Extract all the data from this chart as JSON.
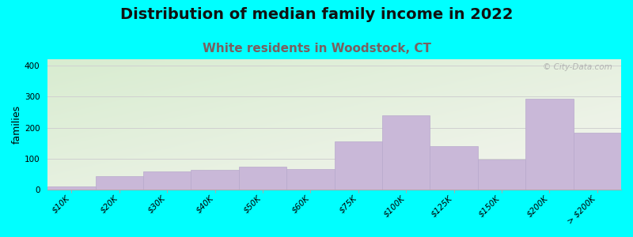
{
  "title": "Distribution of median family income in 2022",
  "subtitle": "White residents in Woodstock, CT",
  "ylabel": "families",
  "categories": [
    "$10K",
    "$20K",
    "$30K",
    "$40K",
    "$50K",
    "$60K",
    "$75K",
    "$100K",
    "$125K",
    "$150K",
    "$200K",
    "> $200K"
  ],
  "values": [
    10,
    45,
    60,
    65,
    75,
    68,
    155,
    240,
    140,
    97,
    293,
    185
  ],
  "bar_color": "#c9b8d8",
  "bar_edge_color": "#b8a8cc",
  "title_fontsize": 14,
  "subtitle_fontsize": 11,
  "subtitle_color": "#7a6060",
  "ylabel_fontsize": 9,
  "tick_fontsize": 7.5,
  "background_outer": "#00ffff",
  "bg_top_left": "#d8ecd0",
  "bg_bottom_right": "#f5f5f0",
  "grid_color": "#d0d0d0",
  "ylim": [
    0,
    420
  ],
  "yticks": [
    0,
    100,
    200,
    300,
    400
  ],
  "watermark": "© City-Data.com"
}
